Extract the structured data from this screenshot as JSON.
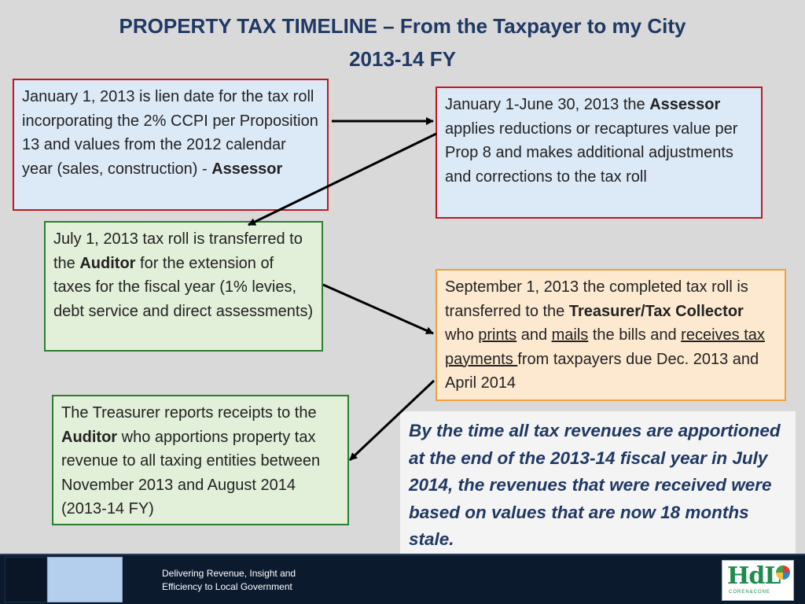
{
  "title": {
    "line1": "PROPERTY TAX TIMELINE – From the Taxpayer to my City",
    "line2": "2013-14 FY"
  },
  "box1": {
    "text": "January 1, 2013 is lien date for the tax roll incorporating the 2% CCPI per Proposition 13 and values from the 2012 calendar year (sales, construction) - ",
    "bold": "Assessor"
  },
  "box2": {
    "pre": "January 1-June 30, 2013 the ",
    "bold": "Assessor",
    "post": " applies reductions or recaptures value per Prop 8 and makes additional adjustments and corrections to the tax roll"
  },
  "box3": {
    "pre": "July 1, 2013 tax roll is transferred to the ",
    "bold": "Auditor",
    "post": " for the extension of taxes for the fiscal year (1% levies, debt service and direct assessments)"
  },
  "box4": {
    "pre": "September 1, 2013 the completed tax roll is transferred to the ",
    "bold": "Treasurer/Tax Collector",
    "mid1": " who ",
    "u1": "prints",
    "mid2": " and ",
    "u2": "mails",
    "mid3": " the bills and ",
    "u3": "receives tax payments ",
    "post": "from taxpayers due Dec. 2013 and April 2014"
  },
  "box5": {
    "pre": "The Treasurer reports receipts to the ",
    "bold": "Auditor",
    "post": " who apportions property tax revenue to all taxing entities between November 2013 and August 2014 (2013-14 FY)"
  },
  "note": "By the time all tax revenues are apportioned at the end of the 2013-14 fiscal year in July 2014, the revenues that were received were based on values that are now 18 months stale.",
  "footer": {
    "tagline1": "Delivering Revenue, Insight and",
    "tagline2": "Efficiency to Local Government",
    "logo_text": "HdL",
    "logo_sub": "COREN&CONE"
  },
  "colors": {
    "title": "#1f3864",
    "red_border": "#c0181f",
    "green_border": "#2e7d32",
    "orange_border": "#f0a040",
    "footer_bg": "#0c1a2e"
  }
}
